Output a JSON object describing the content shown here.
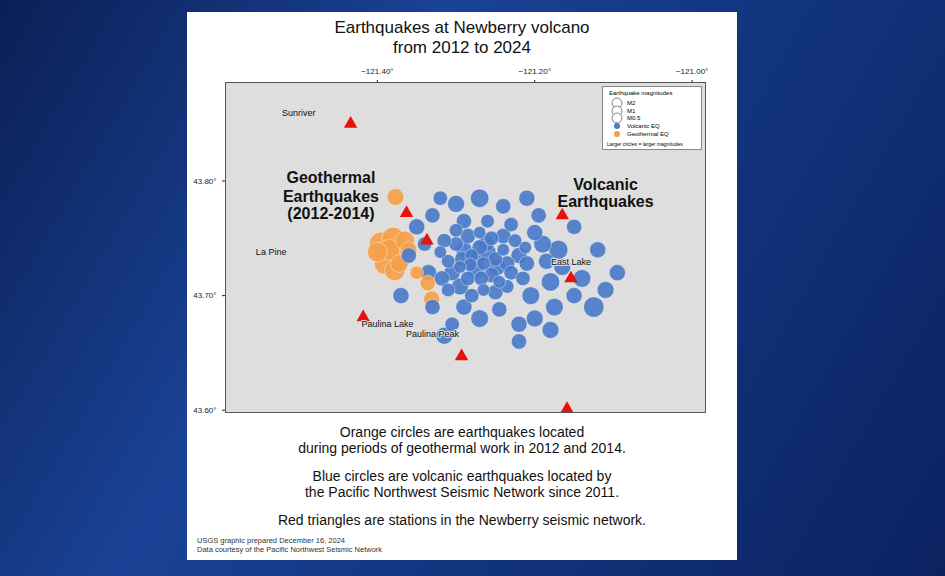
{
  "chart_data": {
    "type": "scatter",
    "title": "Earthquakes at Newberry volcano",
    "subtitle": "from 2012 to 2024",
    "xlim": [
      -121.593,
      -120.983
    ],
    "ylim": [
      43.598,
      43.886
    ],
    "xticks": [
      {
        "value": -121.4,
        "label": "−121.40°"
      },
      {
        "value": -121.2,
        "label": "−121.20°"
      },
      {
        "value": -121.0,
        "label": "−121.00°"
      }
    ],
    "yticks": [
      {
        "value": 43.8,
        "label": "43.80°"
      },
      {
        "value": 43.7,
        "label": "43.70°"
      },
      {
        "value": 43.6,
        "label": "43.60°"
      }
    ],
    "grid": false,
    "legend": "top-right",
    "series": [
      {
        "name": "Volcanic EQ",
        "color": "#4a7bc8",
        "marker": "circle",
        "x": [
          -121.3,
          -121.29,
          -121.28,
          -121.27,
          -121.26,
          -121.25,
          -121.24,
          -121.235,
          -121.31,
          -121.305,
          -121.295,
          -121.285,
          -121.275,
          -121.265,
          -121.255,
          -121.245,
          -121.23,
          -121.22,
          -121.225,
          -121.24,
          -121.255,
          -121.27,
          -121.285,
          -121.3,
          -121.315,
          -121.32,
          -121.318,
          -121.31,
          -121.295,
          -121.28,
          -121.265,
          -121.25,
          -121.235,
          -121.215,
          -121.21,
          -121.212,
          -121.23,
          -121.26,
          -121.29,
          -121.275,
          -121.262,
          -121.292,
          -121.248,
          -121.282,
          -121.268,
          -121.205,
          -121.2,
          -121.195,
          -121.19,
          -121.185,
          -121.18,
          -121.17,
          -121.165,
          -121.15,
          -121.14,
          -121.125,
          -121.11,
          -121.095,
          -121.15,
          -121.175,
          -121.2,
          -121.22,
          -121.245,
          -121.27,
          -121.29,
          -121.305,
          -121.315,
          -121.33,
          -121.335,
          -121.34,
          -121.35,
          -121.33,
          -121.3,
          -121.27,
          -121.24,
          -121.21,
          -121.32,
          -121.36,
          -121.37,
          -121.22,
          -121.18,
          -121.12
        ],
        "y": [
          43.745,
          43.74,
          43.735,
          43.742,
          43.738,
          43.732,
          43.74,
          43.728,
          43.73,
          43.72,
          43.725,
          43.715,
          43.722,
          43.728,
          43.718,
          43.712,
          43.72,
          43.735,
          43.748,
          43.752,
          43.75,
          43.755,
          43.752,
          43.757,
          43.748,
          43.738,
          43.715,
          43.705,
          43.708,
          43.7,
          43.705,
          43.703,
          43.708,
          43.715,
          43.728,
          43.742,
          43.762,
          43.765,
          43.765,
          43.733,
          43.745,
          43.732,
          43.725,
          43.727,
          43.715,
          43.7,
          43.755,
          43.77,
          43.745,
          43.73,
          43.712,
          43.74,
          43.725,
          43.7,
          43.715,
          43.69,
          43.705,
          43.72,
          43.76,
          43.69,
          43.68,
          43.675,
          43.688,
          43.68,
          43.69,
          43.675,
          43.665,
          43.69,
          43.72,
          43.745,
          43.76,
          43.77,
          43.78,
          43.785,
          43.778,
          43.785,
          43.785,
          43.735,
          43.7,
          43.66,
          43.67,
          43.74
        ],
        "size": [
          0.8,
          1.0,
          0.7,
          0.9,
          1.1,
          0.8,
          0.6,
          0.9,
          0.7,
          1.0,
          0.6,
          0.8,
          1.2,
          0.7,
          0.9,
          0.6,
          0.8,
          1.0,
          0.7,
          0.9,
          0.8,
          0.6,
          0.9,
          0.7,
          0.8,
          0.6,
          0.9,
          0.7,
          1.1,
          0.8,
          0.6,
          0.9,
          0.7,
          0.8,
          0.9,
          0.6,
          0.8,
          0.7,
          0.9,
          1.3,
          1.0,
          0.9,
          1.1,
          0.7,
          0.8,
          1.2,
          1.0,
          0.9,
          1.2,
          1.0,
          1.3,
          1.4,
          1.1,
          1.0,
          1.2,
          1.6,
          1.1,
          1.0,
          0.9,
          1.2,
          1.1,
          1.0,
          0.9,
          1.2,
          1.0,
          0.8,
          1.1,
          0.9,
          1.0,
          0.8,
          1.0,
          0.9,
          1.1,
          1.3,
          0.9,
          1.0,
          0.8,
          0.9,
          1.0,
          0.9,
          1.1,
          1.0
        ]
      },
      {
        "name": "Geothermal EQ",
        "color": "#f5a04a",
        "marker": "circle",
        "x": [
          -121.395,
          -121.38,
          -121.37,
          -121.39,
          -121.378,
          -121.4,
          -121.365,
          -121.385,
          -121.372,
          -121.36,
          -121.377,
          -121.336,
          -121.331,
          -121.35
        ],
        "y": [
          43.745,
          43.75,
          43.735,
          43.728,
          43.722,
          43.738,
          43.748,
          43.74,
          43.728,
          43.74,
          43.786,
          43.711,
          43.697,
          43.72
        ],
        "size": [
          2.2,
          1.9,
          2.0,
          1.8,
          1.6,
          1.5,
          1.4,
          1.7,
          1.2,
          1.0,
          1.1,
          0.9,
          1.0,
          0.7
        ]
      }
    ],
    "stations": {
      "color": "#e8120c",
      "marker": "triangle",
      "x": [
        -121.434,
        -121.363,
        -121.337,
        -121.165,
        -121.154,
        -121.418,
        -121.293,
        -121.159
      ],
      "y": [
        43.85,
        43.772,
        43.748,
        43.77,
        43.715,
        43.681,
        43.647,
        43.601
      ]
    },
    "size_legend": {
      "title": "Earthquake magnitudes",
      "values": [
        2,
        1,
        0.5
      ],
      "labels": [
        "M2",
        "M1",
        "M0.5"
      ],
      "note": "Larger circles = larger magnitudes"
    },
    "callouts": [
      {
        "lines": [
          "Geothermal",
          "Earthquakes",
          "(2012-2014)"
        ],
        "x": -121.459,
        "y": [
          43.803,
          43.786,
          43.771
        ]
      },
      {
        "lines": [
          "Volcanic",
          "Earthquakes"
        ],
        "x": -121.11,
        "y": [
          43.797,
          43.782
        ]
      }
    ],
    "place_labels": [
      {
        "text": "Sunriver",
        "x": -121.5,
        "y": 43.859
      },
      {
        "text": "La Pine",
        "x": -121.535,
        "y": 43.738
      },
      {
        "text": "Paulina Lake",
        "x": -121.387,
        "y": 43.675
      },
      {
        "text": "East Lake",
        "x": -121.154,
        "y": 43.729
      },
      {
        "text": "Paulina Peak",
        "x": -121.33,
        "y": 43.666
      }
    ],
    "caption": [
      [
        "Orange circles are earthquakes located",
        "during periods of geothermal work in 2012 and 2014."
      ],
      [
        "Blue circles are volcanic earthquakes located by",
        "the Pacific Northwest Seismic Network since 2011."
      ],
      [
        "Red triangles are stations in the Newberry seismic network."
      ]
    ],
    "footer": [
      "USGS graphic prepared December 16, 2024",
      "Data courtesy of the Pacific Northwest Seismic Network"
    ]
  }
}
